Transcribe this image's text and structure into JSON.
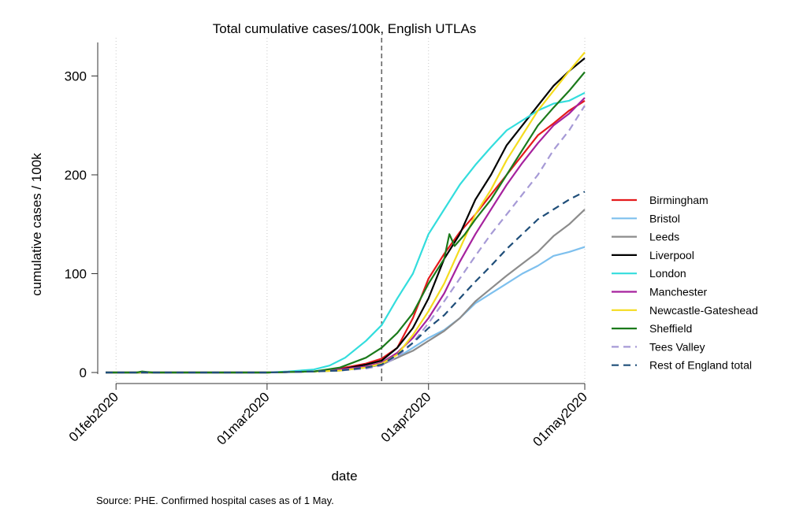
{
  "chart_data": {
    "type": "line",
    "title": "Total cumulative cases/100k, English UTLAs",
    "xlabel": "date",
    "ylabel": "cumulative cases / 100k",
    "note": "Source: PHE. Confirmed hospital cases as of 1 May.",
    "x_range": [
      "2020-01-30",
      "2020-05-01"
    ],
    "ylim": [
      0,
      330
    ],
    "x_ticks": [
      {
        "date": "2020-02-01",
        "label": "01feb2020"
      },
      {
        "date": "2020-03-01",
        "label": "01mar2020"
      },
      {
        "date": "2020-04-01",
        "label": "01apr2020"
      },
      {
        "date": "2020-05-01",
        "label": "01may2020"
      }
    ],
    "y_ticks": [
      0,
      100,
      200,
      300
    ],
    "reference_line_date": "2020-03-23",
    "grid": "vertical dotted at x ticks",
    "legend_position": "right",
    "series": [
      {
        "name": "Birmingham",
        "color": "#e41a1c",
        "dash": "solid",
        "points": [
          [
            "2020-01-30",
            0
          ],
          [
            "2020-03-01",
            0
          ],
          [
            "2020-03-10",
            1
          ],
          [
            "2020-03-15",
            4
          ],
          [
            "2020-03-20",
            9
          ],
          [
            "2020-03-23",
            14
          ],
          [
            "2020-03-26",
            25
          ],
          [
            "2020-03-29",
            55
          ],
          [
            "2020-04-01",
            95
          ],
          [
            "2020-04-04",
            120
          ],
          [
            "2020-04-07",
            142
          ],
          [
            "2020-04-10",
            160
          ],
          [
            "2020-04-13",
            180
          ],
          [
            "2020-04-16",
            200
          ],
          [
            "2020-04-19",
            220
          ],
          [
            "2020-04-22",
            240
          ],
          [
            "2020-04-25",
            252
          ],
          [
            "2020-04-28",
            265
          ],
          [
            "2020-05-01",
            275
          ]
        ]
      },
      {
        "name": "Bristol",
        "color": "#7ec0ee",
        "dash": "solid",
        "points": [
          [
            "2020-01-30",
            0
          ],
          [
            "2020-03-01",
            0
          ],
          [
            "2020-03-10",
            1
          ],
          [
            "2020-03-15",
            2
          ],
          [
            "2020-03-20",
            5
          ],
          [
            "2020-03-23",
            8
          ],
          [
            "2020-03-26",
            15
          ],
          [
            "2020-03-29",
            25
          ],
          [
            "2020-04-01",
            35
          ],
          [
            "2020-04-04",
            43
          ],
          [
            "2020-04-07",
            55
          ],
          [
            "2020-04-10",
            70
          ],
          [
            "2020-04-13",
            80
          ],
          [
            "2020-04-16",
            90
          ],
          [
            "2020-04-19",
            100
          ],
          [
            "2020-04-22",
            108
          ],
          [
            "2020-04-25",
            118
          ],
          [
            "2020-04-28",
            122
          ],
          [
            "2020-05-01",
            127
          ]
        ]
      },
      {
        "name": "Leeds",
        "color": "#8c8c8c",
        "dash": "solid",
        "points": [
          [
            "2020-01-30",
            0
          ],
          [
            "2020-03-01",
            0
          ],
          [
            "2020-03-10",
            1
          ],
          [
            "2020-03-15",
            2
          ],
          [
            "2020-03-20",
            5
          ],
          [
            "2020-03-23",
            8
          ],
          [
            "2020-03-26",
            15
          ],
          [
            "2020-03-29",
            22
          ],
          [
            "2020-04-01",
            32
          ],
          [
            "2020-04-04",
            42
          ],
          [
            "2020-04-07",
            55
          ],
          [
            "2020-04-10",
            72
          ],
          [
            "2020-04-13",
            85
          ],
          [
            "2020-04-16",
            98
          ],
          [
            "2020-04-19",
            110
          ],
          [
            "2020-04-22",
            122
          ],
          [
            "2020-04-25",
            138
          ],
          [
            "2020-04-28",
            150
          ],
          [
            "2020-05-01",
            165
          ]
        ]
      },
      {
        "name": "Liverpool",
        "color": "#000000",
        "dash": "solid",
        "points": [
          [
            "2020-01-30",
            0
          ],
          [
            "2020-03-01",
            0
          ],
          [
            "2020-03-10",
            1
          ],
          [
            "2020-03-15",
            3
          ],
          [
            "2020-03-20",
            8
          ],
          [
            "2020-03-23",
            12
          ],
          [
            "2020-03-26",
            25
          ],
          [
            "2020-03-29",
            45
          ],
          [
            "2020-04-01",
            75
          ],
          [
            "2020-04-04",
            115
          ],
          [
            "2020-04-07",
            140
          ],
          [
            "2020-04-10",
            175
          ],
          [
            "2020-04-13",
            200
          ],
          [
            "2020-04-16",
            230
          ],
          [
            "2020-04-19",
            250
          ],
          [
            "2020-04-22",
            270
          ],
          [
            "2020-04-25",
            290
          ],
          [
            "2020-04-28",
            305
          ],
          [
            "2020-05-01",
            318
          ]
        ]
      },
      {
        "name": "London",
        "color": "#33dddd",
        "dash": "solid",
        "points": [
          [
            "2020-01-30",
            0
          ],
          [
            "2020-03-01",
            0
          ],
          [
            "2020-03-05",
            1
          ],
          [
            "2020-03-10",
            3
          ],
          [
            "2020-03-13",
            7
          ],
          [
            "2020-03-16",
            15
          ],
          [
            "2020-03-20",
            32
          ],
          [
            "2020-03-23",
            48
          ],
          [
            "2020-03-26",
            75
          ],
          [
            "2020-03-29",
            100
          ],
          [
            "2020-04-01",
            140
          ],
          [
            "2020-04-04",
            165
          ],
          [
            "2020-04-07",
            190
          ],
          [
            "2020-04-10",
            210
          ],
          [
            "2020-04-13",
            228
          ],
          [
            "2020-04-16",
            245
          ],
          [
            "2020-04-19",
            255
          ],
          [
            "2020-04-22",
            265
          ],
          [
            "2020-04-25",
            272
          ],
          [
            "2020-04-28",
            275
          ],
          [
            "2020-05-01",
            283
          ]
        ]
      },
      {
        "name": "Manchester",
        "color": "#a6229e",
        "dash": "solid",
        "points": [
          [
            "2020-01-30",
            0
          ],
          [
            "2020-03-01",
            0
          ],
          [
            "2020-03-10",
            1
          ],
          [
            "2020-03-15",
            3
          ],
          [
            "2020-03-20",
            6
          ],
          [
            "2020-03-23",
            10
          ],
          [
            "2020-03-26",
            20
          ],
          [
            "2020-03-29",
            35
          ],
          [
            "2020-04-01",
            55
          ],
          [
            "2020-04-04",
            80
          ],
          [
            "2020-04-07",
            112
          ],
          [
            "2020-04-10",
            140
          ],
          [
            "2020-04-13",
            165
          ],
          [
            "2020-04-16",
            190
          ],
          [
            "2020-04-19",
            212
          ],
          [
            "2020-04-22",
            232
          ],
          [
            "2020-04-25",
            250
          ],
          [
            "2020-04-28",
            262
          ],
          [
            "2020-05-01",
            278
          ]
        ]
      },
      {
        "name": "Newcastle-Gateshead",
        "color": "#f5dc1e",
        "dash": "solid",
        "points": [
          [
            "2020-01-30",
            0
          ],
          [
            "2020-03-01",
            0
          ],
          [
            "2020-03-10",
            1
          ],
          [
            "2020-03-15",
            2
          ],
          [
            "2020-03-20",
            5
          ],
          [
            "2020-03-23",
            9
          ],
          [
            "2020-03-26",
            18
          ],
          [
            "2020-03-29",
            38
          ],
          [
            "2020-04-01",
            62
          ],
          [
            "2020-04-04",
            90
          ],
          [
            "2020-04-07",
            125
          ],
          [
            "2020-04-10",
            160
          ],
          [
            "2020-04-13",
            185
          ],
          [
            "2020-04-16",
            215
          ],
          [
            "2020-04-19",
            240
          ],
          [
            "2020-04-22",
            265
          ],
          [
            "2020-04-25",
            285
          ],
          [
            "2020-04-28",
            305
          ],
          [
            "2020-05-01",
            324
          ]
        ]
      },
      {
        "name": "Sheffield",
        "color": "#1b7a1b",
        "dash": "solid",
        "points": [
          [
            "2020-01-30",
            0
          ],
          [
            "2020-02-05",
            0
          ],
          [
            "2020-02-06",
            1
          ],
          [
            "2020-02-08",
            0
          ],
          [
            "2020-03-01",
            0
          ],
          [
            "2020-03-10",
            1
          ],
          [
            "2020-03-15",
            5
          ],
          [
            "2020-03-20",
            15
          ],
          [
            "2020-03-23",
            25
          ],
          [
            "2020-03-26",
            40
          ],
          [
            "2020-03-29",
            60
          ],
          [
            "2020-04-01",
            90
          ],
          [
            "2020-04-04",
            115
          ],
          [
            "2020-04-05",
            140
          ],
          [
            "2020-04-06",
            128
          ],
          [
            "2020-04-08",
            140
          ],
          [
            "2020-04-10",
            155
          ],
          [
            "2020-04-13",
            175
          ],
          [
            "2020-04-16",
            200
          ],
          [
            "2020-04-19",
            225
          ],
          [
            "2020-04-22",
            250
          ],
          [
            "2020-04-25",
            268
          ],
          [
            "2020-04-28",
            285
          ],
          [
            "2020-05-01",
            304
          ]
        ]
      },
      {
        "name": "Tees Valley",
        "color": "#a69ad6",
        "dash": "dashed",
        "points": [
          [
            "2020-01-30",
            0
          ],
          [
            "2020-03-01",
            0
          ],
          [
            "2020-03-10",
            1
          ],
          [
            "2020-03-15",
            2
          ],
          [
            "2020-03-20",
            4
          ],
          [
            "2020-03-23",
            7
          ],
          [
            "2020-03-26",
            16
          ],
          [
            "2020-03-29",
            30
          ],
          [
            "2020-04-01",
            50
          ],
          [
            "2020-04-04",
            72
          ],
          [
            "2020-04-07",
            95
          ],
          [
            "2020-04-10",
            118
          ],
          [
            "2020-04-13",
            140
          ],
          [
            "2020-04-16",
            160
          ],
          [
            "2020-04-19",
            180
          ],
          [
            "2020-04-22",
            200
          ],
          [
            "2020-04-25",
            225
          ],
          [
            "2020-04-28",
            245
          ],
          [
            "2020-05-01",
            270
          ]
        ]
      },
      {
        "name": "Rest of England total",
        "color": "#1f4e79",
        "dash": "dashed",
        "points": [
          [
            "2020-01-30",
            0
          ],
          [
            "2020-03-01",
            0
          ],
          [
            "2020-03-10",
            1
          ],
          [
            "2020-03-15",
            2
          ],
          [
            "2020-03-20",
            5
          ],
          [
            "2020-03-23",
            8
          ],
          [
            "2020-03-26",
            18
          ],
          [
            "2020-03-29",
            30
          ],
          [
            "2020-04-01",
            45
          ],
          [
            "2020-04-04",
            58
          ],
          [
            "2020-04-07",
            75
          ],
          [
            "2020-04-10",
            92
          ],
          [
            "2020-04-13",
            108
          ],
          [
            "2020-04-16",
            125
          ],
          [
            "2020-04-19",
            140
          ],
          [
            "2020-04-22",
            155
          ],
          [
            "2020-04-25",
            165
          ],
          [
            "2020-04-28",
            175
          ],
          [
            "2020-05-01",
            183
          ]
        ]
      }
    ]
  }
}
